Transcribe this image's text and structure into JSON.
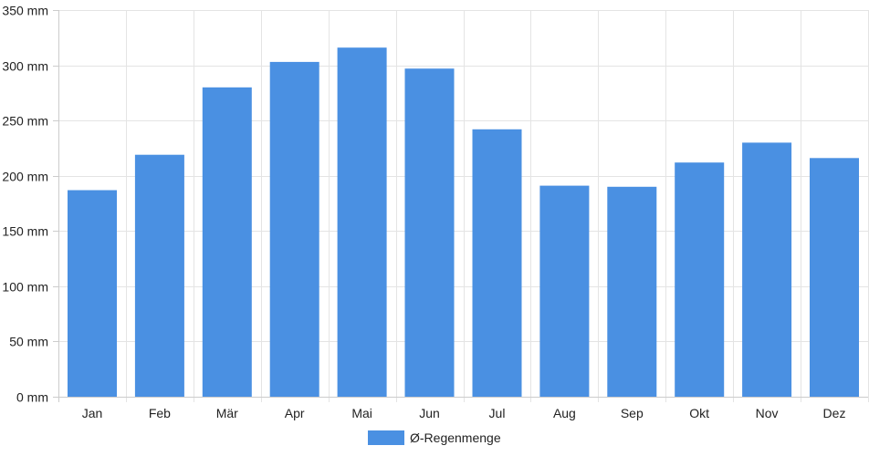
{
  "chart_data": {
    "type": "bar",
    "title": "",
    "xlabel": "",
    "ylabel": "",
    "unit": "mm",
    "categories": [
      "Jan",
      "Feb",
      "Mär",
      "Apr",
      "Mai",
      "Jun",
      "Jul",
      "Aug",
      "Sep",
      "Okt",
      "Nov",
      "Dez"
    ],
    "series": [
      {
        "name": "Ø-Regenmenge",
        "values": [
          187,
          219,
          280,
          303,
          316,
          297,
          242,
          191,
          190,
          212,
          230,
          216
        ],
        "color": "#4a90e2"
      }
    ],
    "ylim": [
      0,
      350
    ],
    "yticks": [
      0,
      50,
      100,
      150,
      200,
      250,
      300,
      350
    ],
    "ytick_labels": [
      "0 mm",
      "50 mm",
      "100 mm",
      "150 mm",
      "200 mm",
      "250 mm",
      "300 mm",
      "350 mm"
    ],
    "grid": true,
    "legend": "bottom-center"
  }
}
